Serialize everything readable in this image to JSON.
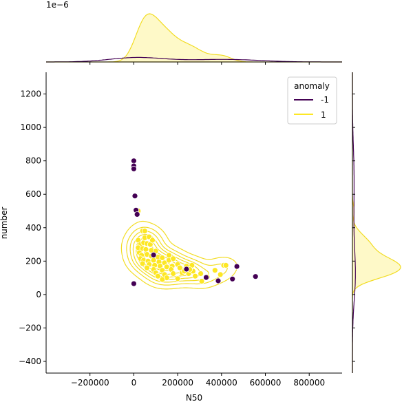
{
  "chart_data": {
    "type": "scatter",
    "title": "",
    "xlabel": "N50",
    "ylabel": "number",
    "xlim": [
      -400000,
      950000
    ],
    "ylim": [
      -470,
      1330
    ],
    "x_ticks": [
      -200000,
      0,
      200000,
      400000,
      600000,
      800000
    ],
    "x_tick_labels": [
      "−200000",
      "0",
      "200000",
      "400000",
      "600000",
      "800000"
    ],
    "y_ticks": [
      -400,
      -200,
      0,
      200,
      400,
      600,
      800,
      1000,
      1200
    ],
    "y_tick_labels": [
      "−400",
      "−200",
      "0",
      "200",
      "400",
      "600",
      "800",
      "1000",
      "1200"
    ],
    "grid": false,
    "legend": {
      "title": "anomaly",
      "placement": "top-right"
    },
    "top_marginal_offset_label": "1e−6",
    "colors": {
      "anomaly_neg": "#440154",
      "anomaly_pos": "#fde725",
      "kde_line_pos": "#f2dc22"
    },
    "series": [
      {
        "name": "-1",
        "color": "#440154",
        "points": [
          [
            0,
            800
          ],
          [
            0,
            770
          ],
          [
            0,
            752
          ],
          [
            5000,
            590
          ],
          [
            10000,
            505
          ],
          [
            15000,
            480
          ],
          [
            0,
            65
          ],
          [
            90000,
            237
          ],
          [
            240000,
            152
          ],
          [
            330000,
            102
          ],
          [
            385000,
            82
          ],
          [
            450000,
            93
          ],
          [
            470000,
            168
          ],
          [
            555000,
            108
          ]
        ]
      },
      {
        "name": "1",
        "color": "#fde725",
        "points": [
          [
            20000,
            500
          ],
          [
            40000,
            380
          ],
          [
            50000,
            380
          ],
          [
            20000,
            325
          ],
          [
            30000,
            300
          ],
          [
            45000,
            310
          ],
          [
            60000,
            305
          ],
          [
            75000,
            300
          ],
          [
            20000,
            280
          ],
          [
            40000,
            275
          ],
          [
            55000,
            270
          ],
          [
            80000,
            265
          ],
          [
            100000,
            260
          ],
          [
            25000,
            250
          ],
          [
            35000,
            235
          ],
          [
            60000,
            240
          ],
          [
            80000,
            230
          ],
          [
            110000,
            225
          ],
          [
            130000,
            220
          ],
          [
            30000,
            215
          ],
          [
            45000,
            205
          ],
          [
            65000,
            200
          ],
          [
            90000,
            205
          ],
          [
            115000,
            195
          ],
          [
            140000,
            190
          ],
          [
            160000,
            205
          ],
          [
            40000,
            185
          ],
          [
            70000,
            180
          ],
          [
            95000,
            175
          ],
          [
            120000,
            170
          ],
          [
            150000,
            165
          ],
          [
            175000,
            170
          ],
          [
            200000,
            180
          ],
          [
            60000,
            160
          ],
          [
            90000,
            150
          ],
          [
            130000,
            145
          ],
          [
            170000,
            150
          ],
          [
            210000,
            160
          ],
          [
            240000,
            170
          ],
          [
            265000,
            175
          ],
          [
            100000,
            130
          ],
          [
            140000,
            120
          ],
          [
            180000,
            125
          ],
          [
            220000,
            130
          ],
          [
            250000,
            125
          ],
          [
            270000,
            140
          ],
          [
            110000,
            110
          ],
          [
            150000,
            100
          ],
          [
            200000,
            95
          ],
          [
            130000,
            90
          ],
          [
            280000,
            110
          ],
          [
            305000,
            125
          ],
          [
            310000,
            80
          ],
          [
            335000,
            105
          ],
          [
            370000,
            145
          ],
          [
            395000,
            120
          ],
          [
            410000,
            175
          ],
          [
            420000,
            175
          ],
          [
            160000,
            235
          ],
          [
            180000,
            215
          ],
          [
            230000,
            140
          ],
          [
            255000,
            150
          ],
          [
            50000,
            340
          ],
          [
            70000,
            345
          ],
          [
            85000,
            325
          ]
        ]
      }
    ]
  }
}
